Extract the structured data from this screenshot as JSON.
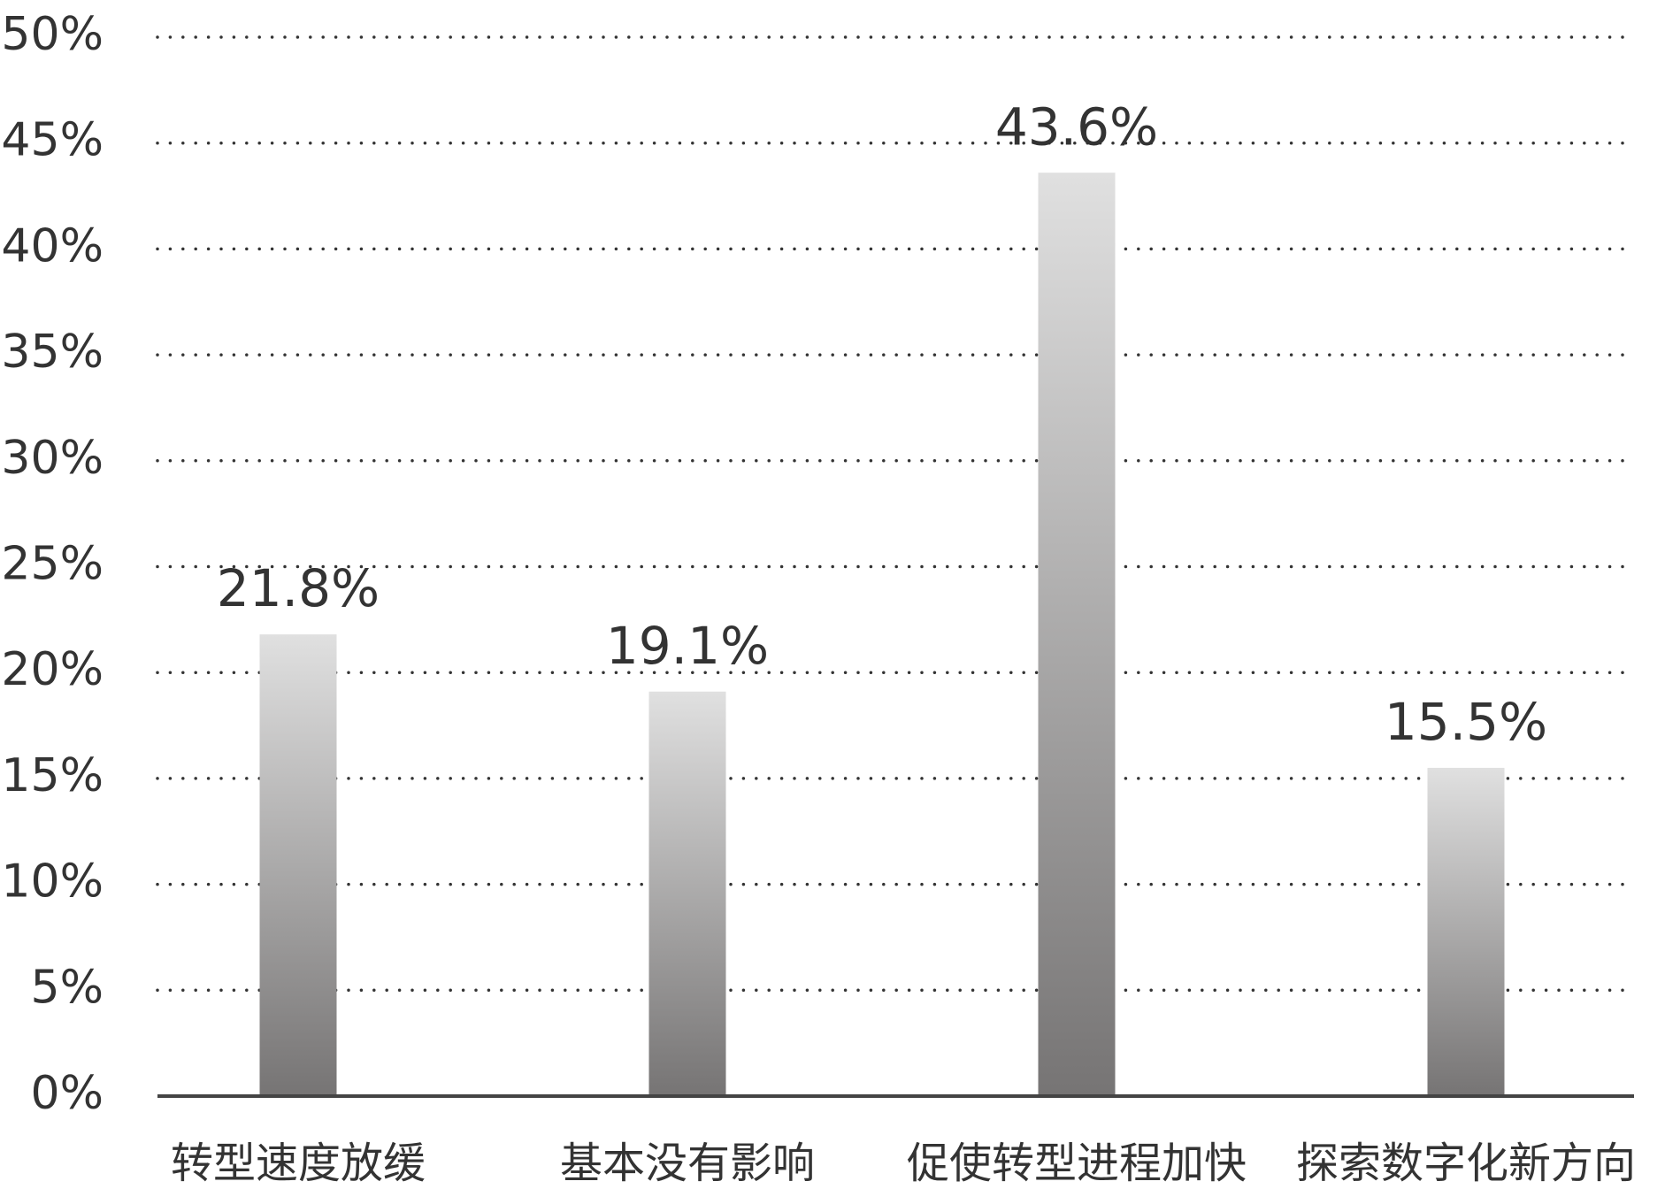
{
  "chart_data": {
    "type": "bar",
    "categories": [
      "转型速度放缓",
      "基本没有影响",
      "促使转型进程加快",
      "探索数字化新方向"
    ],
    "values": [
      21.8,
      19.1,
      43.6,
      15.5
    ],
    "value_labels": [
      "21.8%",
      "19.1%",
      "43.6%",
      "15.5%"
    ],
    "gradient": [
      "#e0e0e0",
      "#767474"
    ],
    "ylim": [
      0,
      50
    ],
    "yticks": [
      {
        "value": 0,
        "label": "0%"
      },
      {
        "value": 5,
        "label": "5%"
      },
      {
        "value": 10,
        "label": "10%"
      },
      {
        "value": 15,
        "label": "15%"
      },
      {
        "value": 20,
        "label": "20%"
      },
      {
        "value": 25,
        "label": "25%"
      },
      {
        "value": 30,
        "label": "30%"
      },
      {
        "value": 35,
        "label": "35%"
      },
      {
        "value": 40,
        "label": "40%"
      },
      {
        "value": 45,
        "label": "45%"
      },
      {
        "value": 50,
        "label": "50%"
      }
    ],
    "grid": true
  }
}
